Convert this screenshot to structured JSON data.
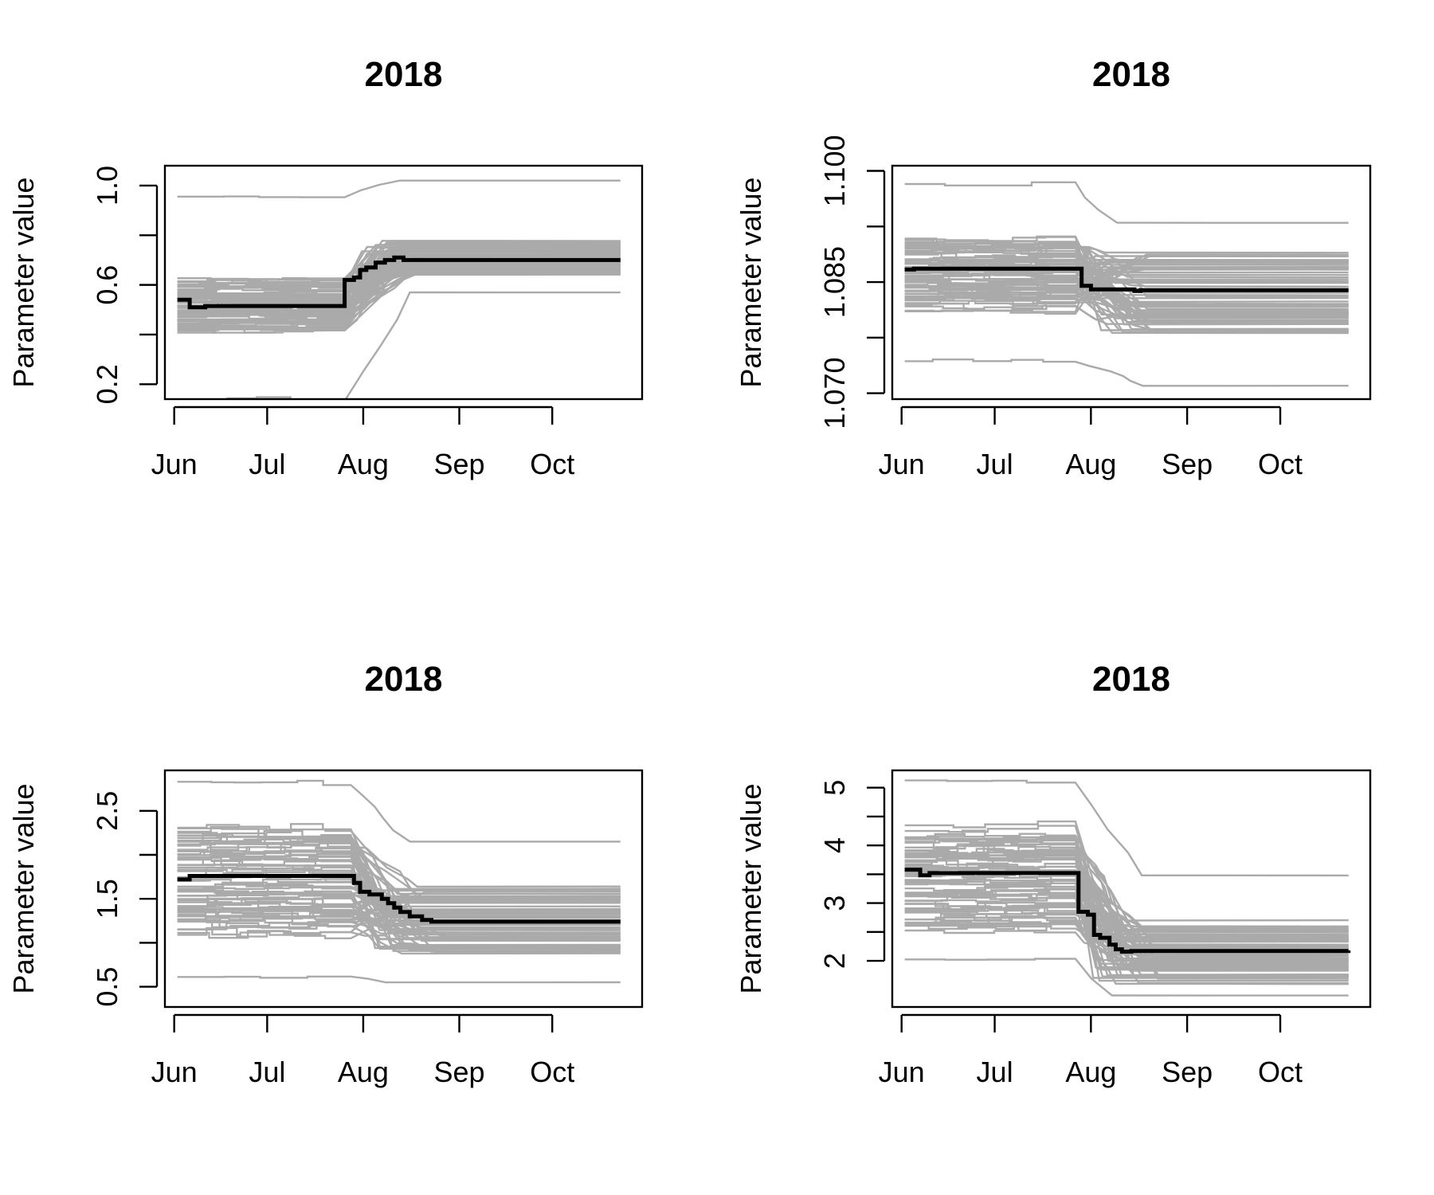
{
  "chart_data": [
    {
      "type": "line",
      "title": "2018",
      "xlabel": "",
      "ylabel": "Parameter value",
      "x_ticks": [
        "Jun",
        "Jul",
        "Aug",
        "Sep",
        "Oct"
      ],
      "xlim": [
        "2018-05-29",
        "2018-10-30"
      ],
      "y_ticks": [
        "0.2",
        "0.6",
        "1.0"
      ],
      "ylim": [
        0.14,
        1.08
      ],
      "grid": false,
      "colors": {
        "ensemble": "#aaaaaa",
        "mean": "#000000"
      },
      "mean_series": {
        "x": [
          "2018-06-02",
          "2018-06-05",
          "2018-06-06",
          "2018-06-09",
          "2018-06-11",
          "2018-07-25",
          "2018-07-26",
          "2018-07-29",
          "2018-07-31",
          "2018-08-02",
          "2018-08-05",
          "2018-08-08",
          "2018-08-11",
          "2018-08-14",
          "2018-08-20",
          "2018-10-23"
        ],
        "values": [
          0.54,
          0.54,
          0.51,
          0.51,
          0.515,
          0.515,
          0.62,
          0.63,
          0.66,
          0.67,
          0.69,
          0.7,
          0.71,
          0.7,
          0.7,
          0.7
        ]
      },
      "ensemble": {
        "count": 70,
        "start": "2018-06-02",
        "end": "2018-10-23",
        "break_date": "2018-07-26",
        "before_center": 0.515,
        "before_spread": 0.13,
        "after_center": 0.71,
        "after_spread": 0.07,
        "outliers": [
          {
            "before": 0.96,
            "after": 1.02
          },
          {
            "before": 0.14,
            "after": 0.57
          }
        ]
      }
    },
    {
      "type": "line",
      "title": "2018",
      "xlabel": "",
      "ylabel": "Parameter value",
      "x_ticks": [
        "Jun",
        "Jul",
        "Aug",
        "Sep",
        "Oct"
      ],
      "xlim": [
        "2018-05-29",
        "2018-10-30"
      ],
      "y_ticks": [
        "1.070",
        "1.085",
        "1.100"
      ],
      "ylim": [
        1.0692,
        1.1007
      ],
      "grid": false,
      "colors": {
        "ensemble": "#aaaaaa",
        "mean": "#000000"
      },
      "mean_series": {
        "x": [
          "2018-06-02",
          "2018-06-05",
          "2018-07-27",
          "2018-07-29",
          "2018-08-01",
          "2018-08-05",
          "2018-08-15",
          "2018-08-17",
          "2018-10-23"
        ],
        "values": [
          1.0867,
          1.0868,
          1.0868,
          1.0845,
          1.084,
          1.084,
          1.0838,
          1.0839,
          1.0839
        ]
      },
      "ensemble": {
        "count": 70,
        "start": "2018-06-02",
        "end": "2018-10-23",
        "break_date": "2018-07-27",
        "before_center": 1.0862,
        "before_spread": 0.0055,
        "after_center": 1.0835,
        "after_spread": 0.0055,
        "outliers": [
          {
            "before": 1.0744,
            "after": 1.071
          },
          {
            "before": 1.0983,
            "after": 1.093
          }
        ]
      }
    },
    {
      "type": "line",
      "title": "2018",
      "xlabel": "",
      "ylabel": "Parameter value",
      "x_ticks": [
        "Jun",
        "Jul",
        "Aug",
        "Sep",
        "Oct"
      ],
      "xlim": [
        "2018-05-29",
        "2018-10-30"
      ],
      "y_ticks": [
        "0.5",
        "1.5",
        "2.5"
      ],
      "ylim": [
        0.27,
        2.96
      ],
      "grid": false,
      "colors": {
        "ensemble": "#aaaaaa",
        "mean": "#000000"
      },
      "mean_series": {
        "x": [
          "2018-06-02",
          "2018-06-04",
          "2018-06-06",
          "2018-07-26",
          "2018-07-29",
          "2018-07-31",
          "2018-08-03",
          "2018-08-07",
          "2018-08-09",
          "2018-08-11",
          "2018-08-13",
          "2018-08-16",
          "2018-08-20",
          "2018-08-23",
          "2018-10-23"
        ],
        "values": [
          1.72,
          1.72,
          1.76,
          1.76,
          1.68,
          1.58,
          1.55,
          1.5,
          1.45,
          1.4,
          1.35,
          1.3,
          1.26,
          1.24,
          1.24
        ]
      },
      "ensemble": {
        "count": 70,
        "start": "2018-06-02",
        "end": "2018-10-23",
        "break_date": "2018-07-28",
        "before_center": 1.7,
        "before_spread": 0.7,
        "after_center": 1.24,
        "after_spread": 0.4,
        "outliers": [
          {
            "before": 2.82,
            "after": 2.15
          },
          {
            "before": 0.62,
            "after": 0.55
          }
        ]
      }
    },
    {
      "type": "line",
      "title": "2018",
      "xlabel": "",
      "ylabel": "Parameter value",
      "x_ticks": [
        "Jun",
        "Jul",
        "Aug",
        "Sep",
        "Oct"
      ],
      "xlim": [
        "2018-05-29",
        "2018-10-30"
      ],
      "y_ticks": [
        "2",
        "3",
        "4",
        "5"
      ],
      "ylim": [
        1.2,
        5.3
      ],
      "grid": false,
      "colors": {
        "ensemble": "#aaaaaa",
        "mean": "#000000"
      },
      "mean_series": {
        "x": [
          "2018-06-02",
          "2018-06-04",
          "2018-06-07",
          "2018-06-10",
          "2018-07-27",
          "2018-07-28",
          "2018-07-31",
          "2018-08-02",
          "2018-08-04",
          "2018-08-07",
          "2018-08-09",
          "2018-08-11",
          "2018-08-14",
          "2018-08-20",
          "2018-10-23"
        ],
        "values": [
          3.58,
          3.58,
          3.48,
          3.52,
          3.52,
          2.85,
          2.8,
          2.45,
          2.4,
          2.28,
          2.2,
          2.16,
          2.17,
          2.17,
          2.18
        ]
      },
      "ensemble": {
        "count": 70,
        "start": "2018-06-02",
        "end": "2018-10-23",
        "break_date": "2018-07-27",
        "before_center": 3.4,
        "before_spread": 1.0,
        "after_center": 2.15,
        "after_spread": 0.55,
        "outliers": [
          {
            "before": 5.1,
            "after": 3.48
          },
          {
            "before": 2.0,
            "after": 1.4
          }
        ]
      }
    }
  ]
}
